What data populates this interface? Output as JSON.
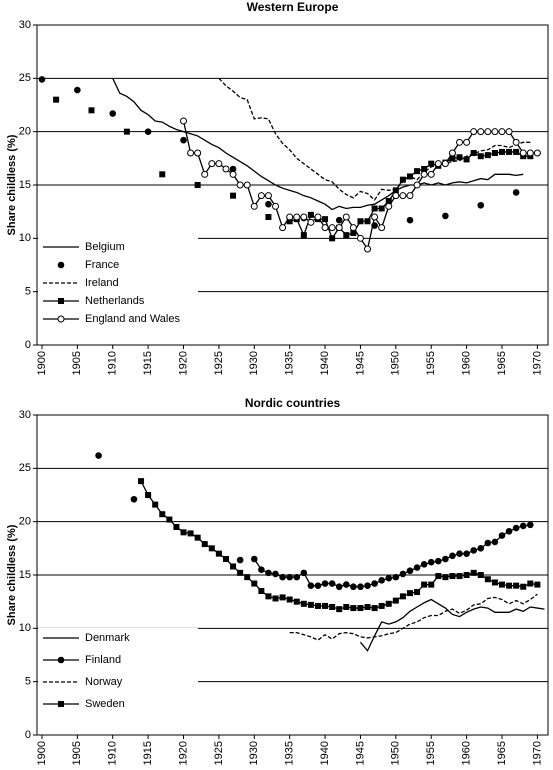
{
  "chart_data": [
    {
      "type": "line",
      "title": "Western Europe",
      "y_label": "Share childless (%)",
      "xlim": [
        1899.3,
        1971.5
      ],
      "ylim": [
        0,
        30
      ],
      "xticks": [
        1900,
        1905,
        1910,
        1915,
        1920,
        1925,
        1930,
        1935,
        1940,
        1945,
        1950,
        1955,
        1960,
        1965,
        1970
      ],
      "yticks": [
        0,
        5,
        10,
        15,
        20,
        25,
        30
      ],
      "grid": true,
      "legend": "lower left",
      "series": [
        {
          "name": "Belgium",
          "color": "#000000",
          "line": "solid",
          "marker": "none",
          "x": [
            1910,
            1911,
            1912,
            1913,
            1914,
            1915,
            1916,
            1917,
            1918,
            1919,
            1920,
            1921,
            1922,
            1923,
            1924,
            1925,
            1926,
            1927,
            1928,
            1929,
            1930,
            1931,
            1932,
            1933,
            1934,
            1935,
            1936,
            1937,
            1938,
            1939,
            1940,
            1941,
            1942,
            1943,
            1944,
            1945,
            1946,
            1947,
            1948,
            1949,
            1950,
            1951,
            1952,
            1953,
            1954,
            1955,
            1956,
            1957,
            1958,
            1959,
            1960,
            1961,
            1962,
            1963,
            1964,
            1965,
            1966,
            1967,
            1968
          ],
          "values": [
            25,
            23.6,
            23.3,
            22.8,
            22,
            21.6,
            21,
            20.9,
            20.5,
            20.2,
            20,
            19.8,
            19.6,
            19.2,
            18.8,
            18.5,
            18,
            17.6,
            17.2,
            16.8,
            16.3,
            15.8,
            15.4,
            15,
            14.7,
            14.5,
            14.3,
            14,
            13.8,
            13.5,
            13.2,
            12.7,
            13,
            12.8,
            12.9,
            12.9,
            13.1,
            13.2,
            13.6,
            14,
            14.5,
            14.8,
            15,
            15,
            15.2,
            15,
            15.2,
            15,
            15.2,
            15.3,
            15.2,
            15.4,
            15.6,
            15.5,
            16,
            16,
            16,
            15.9,
            16
          ]
        },
        {
          "name": "France",
          "color": "#000000",
          "line": "none",
          "marker": "circle",
          "x": [
            1900,
            1905,
            1910,
            1915,
            1920,
            1922,
            1927,
            1932,
            1937,
            1942,
            1947,
            1952,
            1957,
            1962,
            1967
          ],
          "values": [
            24.9,
            23.9,
            21.7,
            20,
            19.2,
            18,
            16.5,
            13.2,
            11.9,
            11.7,
            11.2,
            11.7,
            12.1,
            13.1,
            14.3
          ]
        },
        {
          "name": "Ireland",
          "color": "#000000",
          "line": "dashed",
          "marker": "none",
          "x": [
            1925,
            1926,
            1927,
            1928,
            1929,
            1930,
            1931,
            1932,
            1933,
            1934,
            1935,
            1936,
            1937,
            1938,
            1939,
            1940,
            1941,
            1942,
            1943,
            1944,
            1945,
            1946,
            1947,
            1948,
            1949,
            1950,
            1951,
            1952,
            1953,
            1954,
            1955,
            1956,
            1957,
            1958,
            1959,
            1960,
            1961,
            1962,
            1963,
            1964,
            1965,
            1966,
            1967,
            1968,
            1969
          ],
          "values": [
            25,
            24.3,
            23.8,
            23.2,
            23,
            21.2,
            21.3,
            21.2,
            19.8,
            18.9,
            18.3,
            17.5,
            17,
            16.5,
            16,
            15.5,
            15.3,
            14.6,
            14.1,
            13.8,
            14.4,
            14.2,
            13.6,
            14.6,
            14.5,
            14.6,
            15.3,
            15.8,
            15.5,
            16.2,
            16.7,
            16.9,
            17,
            17.2,
            17.3,
            17.7,
            17.9,
            18.2,
            18.3,
            18.7,
            18.7,
            18.5,
            18.8,
            19,
            19
          ]
        },
        {
          "name": "Netherlands",
          "color": "#000000",
          "line": "solid",
          "marker": "square",
          "x": [
            1902,
            1904,
            1907,
            1910,
            1912,
            1915,
            1917,
            1920,
            1922,
            1925,
            1927,
            1930,
            1932,
            1934,
            1935,
            1936,
            1937,
            1938,
            1939,
            1940,
            1941,
            1942,
            1943,
            1944,
            1945,
            1946,
            1947,
            1948,
            1949,
            1950,
            1951,
            1952,
            1953,
            1954,
            1955,
            1956,
            1957,
            1958,
            1959,
            1960,
            1961,
            1962,
            1963,
            1964,
            1965,
            1966,
            1967,
            1968,
            1969
          ],
          "values": [
            23,
            null,
            22,
            null,
            20,
            null,
            16,
            null,
            15,
            null,
            14,
            null,
            12,
            null,
            11.6,
            11.8,
            10.3,
            12.2,
            11.8,
            11.8,
            10,
            11,
            10.3,
            10.5,
            11.6,
            11.6,
            12.8,
            12.8,
            13.5,
            14.5,
            15.5,
            15.8,
            16.3,
            16.5,
            17,
            16.8,
            17.1,
            17.5,
            17.6,
            17.4,
            18,
            17.7,
            17.8,
            18,
            18.1,
            18.1,
            18.1,
            17.7,
            17.7
          ]
        },
        {
          "name": "England and Wales",
          "color": "#000000",
          "line": "solid",
          "marker": "open-circle",
          "x": [
            1920,
            1921,
            1922,
            1923,
            1924,
            1925,
            1926,
            1927,
            1928,
            1929,
            1930,
            1931,
            1932,
            1933,
            1934,
            1935,
            1936,
            1937,
            1938,
            1939,
            1940,
            1941,
            1942,
            1943,
            1944,
            1945,
            1946,
            1947,
            1948,
            1949,
            1950,
            1951,
            1952,
            1953,
            1954,
            1955,
            1956,
            1957,
            1958,
            1959,
            1960,
            1961,
            1962,
            1963,
            1964,
            1965,
            1966,
            1967,
            1968,
            1969,
            1970
          ],
          "values": [
            21,
            18,
            18,
            16,
            17,
            17,
            16.5,
            16,
            15,
            15,
            13,
            14,
            14,
            13,
            11,
            12,
            12,
            12,
            11.5,
            12,
            11,
            11,
            11,
            12,
            11,
            10,
            9,
            12,
            11,
            13,
            14,
            14,
            14,
            15,
            16,
            16,
            17,
            17,
            18,
            19,
            19,
            20,
            20,
            20,
            20,
            20,
            20,
            19,
            18,
            18,
            18
          ]
        }
      ]
    },
    {
      "type": "line",
      "title": "Nordic countries",
      "y_label": "Share childless (%)",
      "xlim": [
        1899.3,
        1971.5
      ],
      "ylim": [
        0,
        30
      ],
      "xticks": [
        1900,
        1905,
        1910,
        1915,
        1920,
        1925,
        1930,
        1935,
        1940,
        1945,
        1950,
        1955,
        1960,
        1965,
        1970
      ],
      "yticks": [
        0,
        5,
        10,
        15,
        20,
        25,
        30
      ],
      "grid": true,
      "legend": "lower left",
      "series": [
        {
          "name": "Denmark",
          "color": "#000000",
          "line": "solid",
          "marker": "none",
          "x": [
            1945,
            1946,
            1947,
            1948,
            1949,
            1950,
            1951,
            1952,
            1953,
            1954,
            1955,
            1956,
            1957,
            1958,
            1959,
            1960,
            1961,
            1962,
            1963,
            1964,
            1965,
            1966,
            1967,
            1968,
            1969,
            1970,
            1971
          ],
          "values": [
            8.7,
            7.9,
            9.3,
            10.6,
            10.4,
            10.6,
            11,
            11.6,
            12,
            12.4,
            12.7,
            12.3,
            11.9,
            11.3,
            11.1,
            11.5,
            11.8,
            12,
            11.9,
            11.5,
            11.5,
            11.5,
            11.8,
            11.6,
            12,
            11.9,
            11.8
          ]
        },
        {
          "name": "Finland",
          "color": "#000000",
          "line": "solid",
          "marker": "circle",
          "x": [
            1908,
            1910,
            1913,
            1920,
            1928,
            1929,
            1930,
            1931,
            1932,
            1933,
            1934,
            1935,
            1936,
            1937,
            1938,
            1939,
            1940,
            1941,
            1942,
            1943,
            1944,
            1945,
            1946,
            1947,
            1948,
            1949,
            1950,
            1951,
            1952,
            1953,
            1954,
            1955,
            1956,
            1957,
            1958,
            1959,
            1960,
            1961,
            1962,
            1963,
            1964,
            1965,
            1966,
            1967,
            1968,
            1969
          ],
          "values": [
            26.2,
            null,
            22.1,
            null,
            16.4,
            null,
            16.5,
            15.5,
            15.2,
            15.1,
            14.8,
            14.8,
            14.8,
            15.2,
            14,
            14,
            14.2,
            14.2,
            13.9,
            14.1,
            13.9,
            13.9,
            14,
            14.2,
            14.5,
            14.7,
            14.8,
            15.1,
            15.4,
            15.7,
            16,
            16.2,
            16.3,
            16.5,
            16.8,
            17,
            17,
            17.3,
            17.5,
            18,
            18.1,
            18.7,
            19.1,
            19.4,
            19.6,
            19.7
          ]
        },
        {
          "name": "Norway",
          "color": "#000000",
          "line": "dashed",
          "marker": "none",
          "x": [
            1935,
            1936,
            1937,
            1938,
            1939,
            1940,
            1941,
            1942,
            1943,
            1944,
            1945,
            1946,
            1947,
            1948,
            1949,
            1950,
            1951,
            1952,
            1953,
            1954,
            1955,
            1956,
            1957,
            1958,
            1959,
            1960,
            1961,
            1962,
            1963,
            1964,
            1965,
            1966,
            1967,
            1968,
            1969,
            1970
          ],
          "values": [
            9.6,
            9.6,
            9.4,
            9.2,
            8.9,
            9.4,
            9,
            9.5,
            9.6,
            9.5,
            9.2,
            9.1,
            9.2,
            9.3,
            9.5,
            9.6,
            10,
            10.4,
            10.6,
            11,
            11.2,
            11.2,
            11.6,
            11.8,
            11.4,
            11.7,
            12.2,
            12.3,
            12.8,
            12.9,
            12.7,
            12.3,
            12.6,
            12.3,
            12.7,
            13.2
          ]
        },
        {
          "name": "Sweden",
          "color": "#000000",
          "line": "solid",
          "marker": "square",
          "x": [
            1914,
            1915,
            1916,
            1917,
            1918,
            1919,
            1920,
            1921,
            1922,
            1923,
            1924,
            1925,
            1926,
            1927,
            1928,
            1929,
            1930,
            1931,
            1932,
            1933,
            1934,
            1935,
            1936,
            1937,
            1938,
            1939,
            1940,
            1941,
            1942,
            1943,
            1944,
            1945,
            1946,
            1947,
            1948,
            1949,
            1950,
            1951,
            1952,
            1953,
            1954,
            1955,
            1956,
            1957,
            1958,
            1959,
            1960,
            1961,
            1962,
            1963,
            1964,
            1965,
            1966,
            1967,
            1968,
            1969,
            1970
          ],
          "values": [
            23.8,
            22.5,
            21.6,
            20.7,
            20.2,
            19.5,
            19,
            18.9,
            18.5,
            17.9,
            17.5,
            17,
            16.5,
            15.8,
            15.2,
            14.8,
            14.2,
            13.5,
            13,
            12.8,
            12.9,
            12.7,
            12.5,
            12.3,
            12.2,
            12.1,
            12.1,
            12,
            11.8,
            12,
            11.9,
            11.9,
            12,
            11.9,
            12.1,
            12.3,
            12.6,
            13,
            13.3,
            13.4,
            14.1,
            14.1,
            14.9,
            14.8,
            14.9,
            14.9,
            15,
            15.2,
            15,
            14.6,
            14.3,
            14.1,
            14,
            14,
            13.9,
            14.2,
            14.1
          ]
        }
      ]
    }
  ]
}
